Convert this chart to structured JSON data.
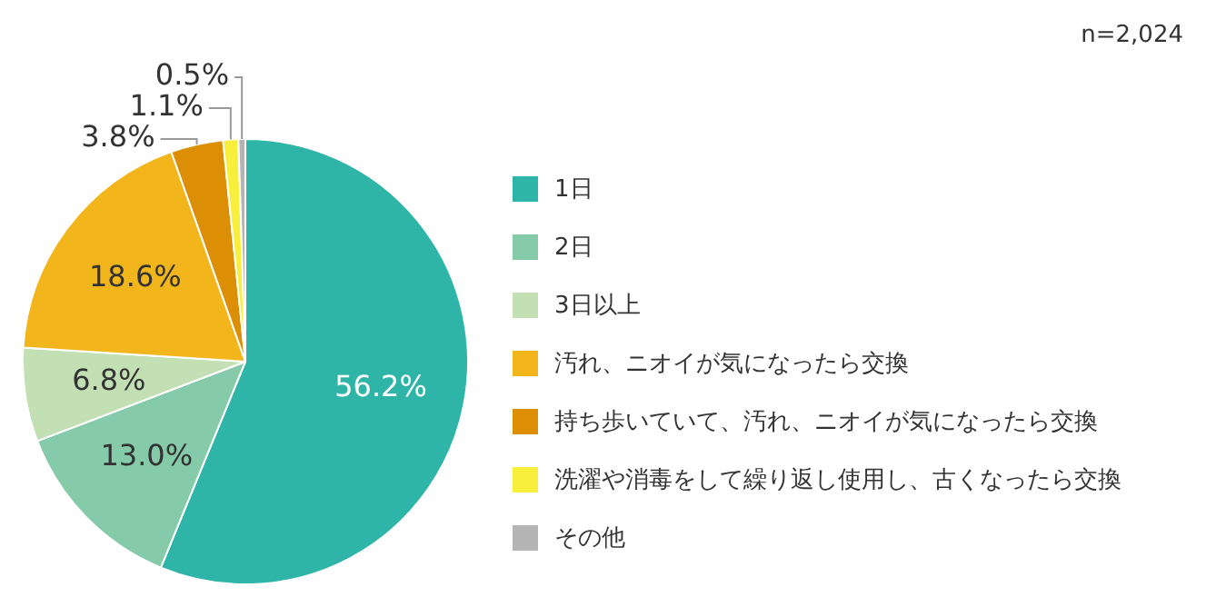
{
  "chart_data": {
    "type": "pie",
    "categories": [
      "1日",
      "2日",
      "3日以上",
      "汚れ、ニオイが気になったら交換",
      "持ち歩いていて、汚れ、ニオイが気になったら交換",
      "洗濯や消毒をして繰り返し使用し、古くなったら交換",
      "その他"
    ],
    "values": [
      56.2,
      13.0,
      6.8,
      18.6,
      3.8,
      1.1,
      0.5
    ],
    "colors": [
      "#2fb5a8",
      "#86cba9",
      "#c2e0b4",
      "#f2b61c",
      "#dc8f05",
      "#f8ee3c",
      "#b4b4b4"
    ],
    "value_labels": [
      "56.2%",
      "13.0%",
      "6.8%",
      "18.6%",
      "3.8%",
      "1.1%",
      "0.5%"
    ],
    "legend": "right",
    "annotations": [
      "n=2,024"
    ]
  }
}
